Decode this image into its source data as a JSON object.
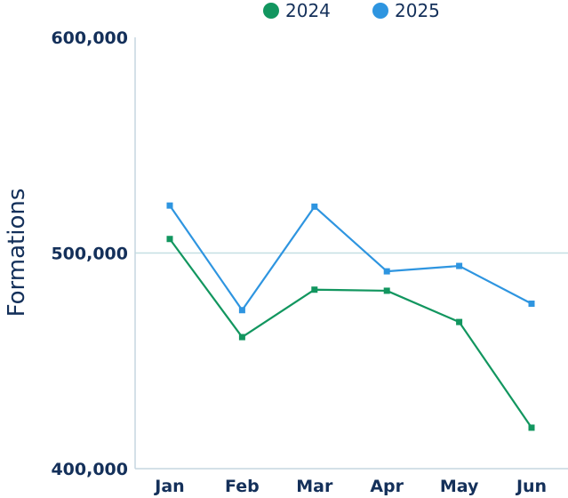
{
  "chart_data": {
    "type": "line",
    "categories": [
      "Jan",
      "Feb",
      "Mar",
      "Apr",
      "May",
      "Jun"
    ],
    "series": [
      {
        "name": "2024",
        "color": "#12965f",
        "values": [
          506500,
          461000,
          483000,
          482500,
          468000,
          419000
        ]
      },
      {
        "name": "2025",
        "color": "#2e95e0",
        "values": [
          522000,
          473500,
          521500,
          491500,
          494000,
          476500
        ]
      }
    ],
    "ylabel": "Formations",
    "ylim": [
      400000,
      600000
    ],
    "yticks": [
      400000,
      500000,
      600000
    ],
    "ytick_labels": [
      "400,000",
      "500,000",
      "600,000"
    ],
    "legend_position": "top-center",
    "grid": "horizontal at 500,000"
  }
}
